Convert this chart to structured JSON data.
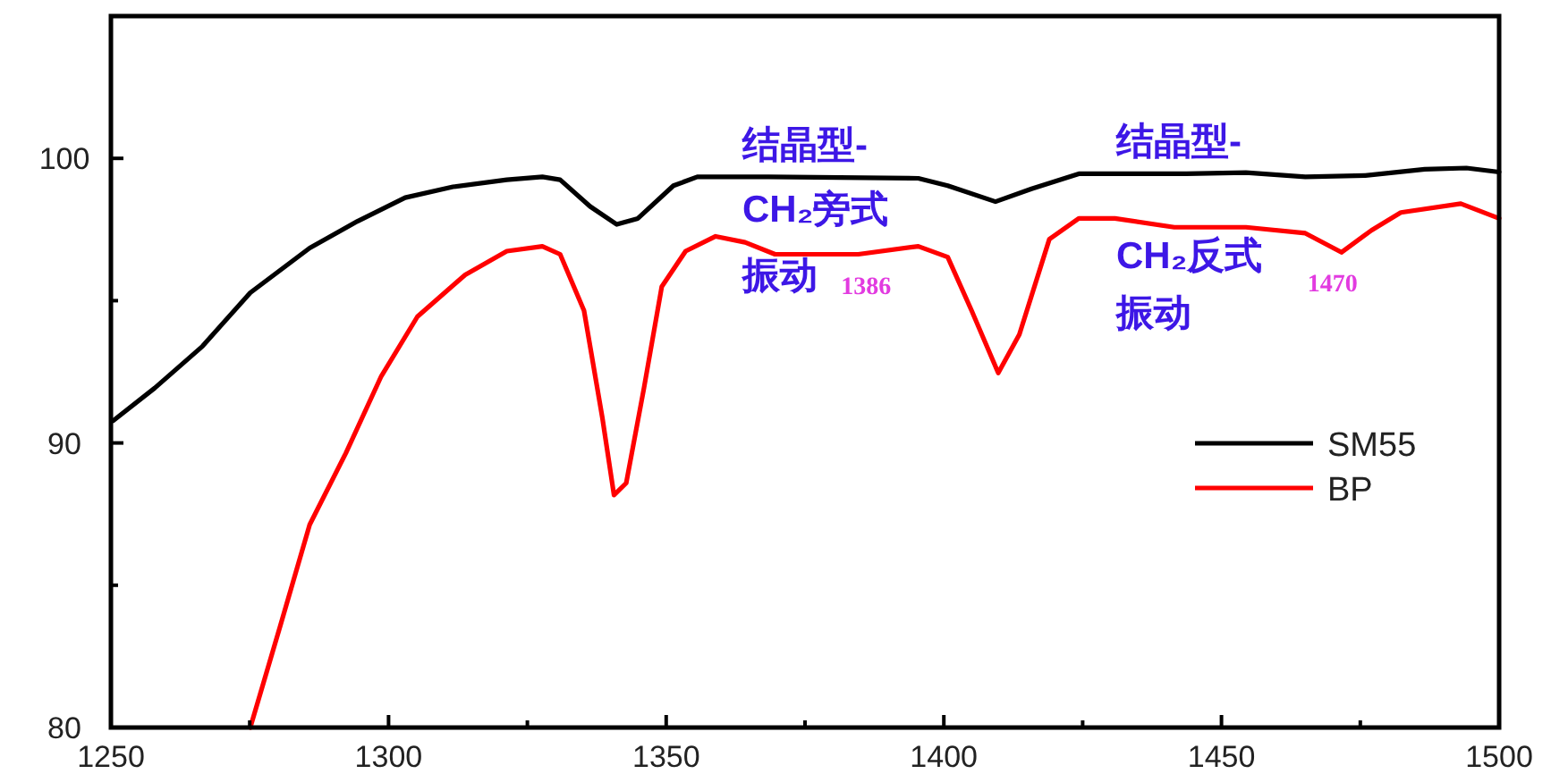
{
  "chart_data": {
    "type": "line",
    "xlim": [
      1250,
      1500
    ],
    "ylim": [
      80,
      105
    ],
    "xticks": [
      1250,
      {
        "value": 1275,
        "label": null
      },
      1300,
      {
        "value": 1325,
        "label": null
      },
      1350,
      {
        "value": 1375,
        "label": null
      },
      1400,
      {
        "value": 1425,
        "label": null
      },
      1450,
      {
        "value": 1475,
        "label": null
      },
      1500
    ],
    "yticks": [
      80,
      {
        "value": 85,
        "label": null
      },
      90,
      {
        "value": 95,
        "label": null
      },
      100
    ],
    "grid": false,
    "legend": "bottom right",
    "marker": "none",
    "line_style": "solid",
    "series": [
      {
        "name": "SM55",
        "color": "#000000",
        "x": [
          1250.4,
          1257.9,
          1266.5,
          1275.1,
          1285.8,
          1294.4,
          1303.0,
          1311.6,
          1321.3,
          1327.7,
          1330.9,
          1336.3,
          1341.1,
          1344.9,
          1351.3,
          1355.6,
          1362.1,
          1368.5,
          1395.4,
          1400.7,
          1409.3,
          1415.8,
          1424.3,
          1443.7,
          1454.4,
          1465.1,
          1475.9,
          1486.6,
          1494.1,
          1500
        ],
        "values": [
          90.78,
          91.93,
          93.4,
          95.28,
          96.85,
          97.79,
          98.62,
          99.0,
          99.25,
          99.35,
          99.25,
          98.31,
          97.68,
          97.89,
          99.04,
          99.35,
          99.35,
          99.35,
          99.3,
          99.04,
          98.48,
          98.93,
          99.46,
          99.46,
          99.5,
          99.35,
          99.4,
          99.62,
          99.66,
          99.52
        ]
      },
      {
        "name": "BP",
        "color": "#ff0000",
        "x": [
          1275.1,
          1280.5,
          1285.8,
          1292.3,
          1298.7,
          1305.2,
          1313.8,
          1321.3,
          1327.7,
          1330.9,
          1335.2,
          1338.5,
          1340.6,
          1342.8,
          1346.0,
          1349.2,
          1353.5,
          1358.9,
          1364.2,
          1369.6,
          1373.9,
          1384.6,
          1395.4,
          1400.7,
          1405.0,
          1409.8,
          1413.6,
          1419.0,
          1424.3,
          1430.8,
          1441.5,
          1454.4,
          1465.1,
          1471.6,
          1477.0,
          1482.3,
          1493.1,
          1500
        ],
        "values": [
          80.0,
          83.57,
          87.13,
          89.64,
          92.35,
          94.44,
          95.91,
          96.74,
          96.91,
          96.63,
          94.65,
          90.89,
          88.17,
          88.59,
          91.93,
          95.49,
          96.74,
          97.26,
          97.05,
          96.63,
          96.63,
          96.63,
          96.91,
          96.53,
          94.65,
          92.46,
          93.81,
          97.16,
          97.89,
          97.89,
          97.58,
          97.58,
          97.37,
          96.7,
          97.47,
          98.1,
          98.41,
          97.89
        ]
      }
    ],
    "annotations": [
      "结晶型-",
      "CH₂旁式",
      "振动",
      "结晶型-",
      "CH₂反式",
      "振动",
      {
        "text": "1386",
        "x": 1386,
        "y": 96.6
      },
      {
        "text": "1470",
        "x": 1470,
        "y": 96.7
      }
    ]
  }
}
